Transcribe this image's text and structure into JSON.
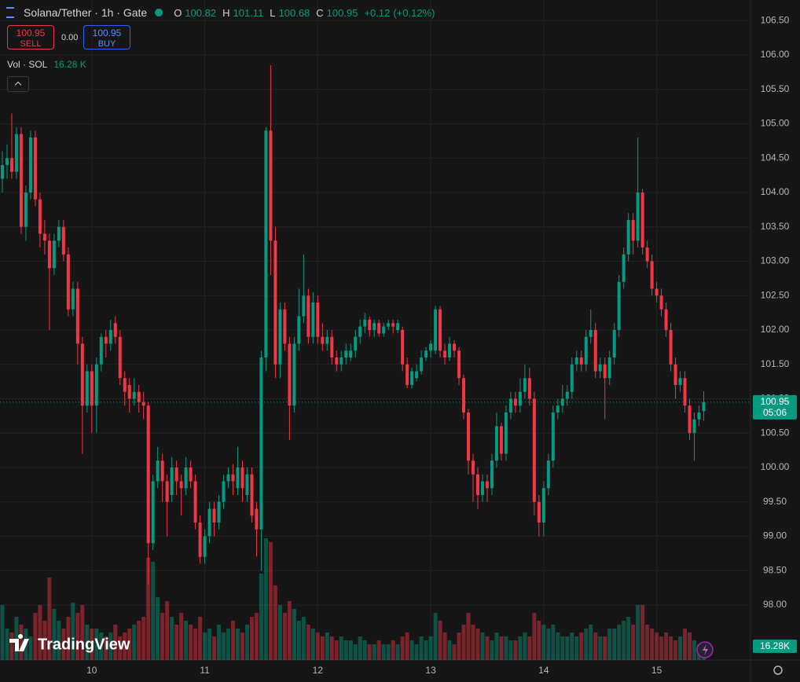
{
  "chart_data": {
    "type": "candlestick",
    "symbol": "Solana/Tether · 1h · Gate",
    "quote_labels": [
      "O",
      "H",
      "L",
      "C"
    ],
    "change": "+0.12",
    "change_pct": "(+0.12%)",
    "trade": {
      "sell": "SELL",
      "spread": "0.00",
      "buy": "BUY"
    },
    "volume_legend": {
      "label": "Vol · SOL",
      "value": "16.28 K"
    },
    "volume_axis_label": "16.28K",
    "countdown": "05:06",
    "logo": "TradingView",
    "up_color": "#089981",
    "down_color": "#f23645",
    "grid": true,
    "categories": [
      null,
      null,
      null,
      null,
      null,
      null,
      null,
      null,
      null,
      null,
      null,
      null,
      null,
      null,
      null,
      null,
      null,
      null,
      null,
      "10",
      null,
      null,
      null,
      null,
      null,
      null,
      null,
      null,
      null,
      null,
      null,
      null,
      null,
      null,
      null,
      null,
      null,
      null,
      null,
      null,
      null,
      null,
      null,
      "11",
      null,
      null,
      null,
      null,
      null,
      null,
      null,
      null,
      null,
      null,
      null,
      null,
      null,
      null,
      null,
      null,
      null,
      null,
      null,
      null,
      null,
      null,
      null,
      "12",
      null,
      null,
      null,
      null,
      null,
      null,
      null,
      null,
      null,
      null,
      null,
      null,
      null,
      null,
      null,
      null,
      null,
      null,
      null,
      null,
      null,
      null,
      null,
      "13",
      null,
      null,
      null,
      null,
      null,
      null,
      null,
      null,
      null,
      null,
      null,
      null,
      null,
      null,
      null,
      null,
      null,
      null,
      null,
      null,
      null,
      null,
      null,
      "14",
      null,
      null,
      null,
      null,
      null,
      null,
      null,
      null,
      null,
      null,
      null,
      null,
      null,
      null,
      null,
      null,
      null,
      null,
      null,
      null,
      null,
      null,
      null,
      "15",
      null,
      null,
      null,
      null,
      null,
      null,
      null,
      null,
      null,
      null
    ],
    "open": [
      104.2,
      104.4,
      104.5,
      104.3,
      104.85,
      103.5,
      104.0,
      104.8,
      103.9,
      103.4,
      103.3,
      102.9,
      103.3,
      103.5,
      103.1,
      102.3,
      102.6,
      101.8,
      100.9,
      101.4,
      100.9,
      101.5,
      101.9,
      101.8,
      102.1,
      101.9,
      101.3,
      101.2,
      101.0,
      101.1,
      100.95,
      100.9,
      98.9,
      99.8,
      100.1,
      99.8,
      99.6,
      100.0,
      99.8,
      99.7,
      100.0,
      99.8,
      99.2,
      98.7,
      99.0,
      99.4,
      99.2,
      99.5,
      99.8,
      99.9,
      99.7,
      100.0,
      99.6,
      99.9,
      99.4,
      99.1,
      101.6,
      104.9,
      103.3,
      101.5,
      102.3,
      101.8,
      100.9,
      101.8,
      102.2,
      102.5,
      101.9,
      102.4,
      101.9,
      101.8,
      101.9,
      101.6,
      101.5,
      101.6,
      101.6,
      101.7,
      101.9,
      102.05,
      102.15,
      102.0,
      102.1,
      101.95,
      102.05,
      102.1,
      102.0,
      102.0,
      101.5,
      101.2,
      101.3,
      101.4,
      101.6,
      101.7,
      101.7,
      102.3,
      101.7,
      101.6,
      101.8,
      101.7,
      101.3,
      100.8,
      100.1,
      99.9,
      99.6,
      99.8,
      99.7,
      100.1,
      100.6,
      100.2,
      100.8,
      101.0,
      100.9,
      101.1,
      101.3,
      101.0,
      99.5,
      99.2,
      99.7,
      100.1,
      100.8,
      100.9,
      101.0,
      101.1,
      101.5,
      101.6,
      101.5,
      101.9,
      102.0,
      101.4,
      101.5,
      101.3,
      101.6,
      102.0,
      102.7,
      103.1,
      103.6,
      103.3,
      104.0,
      103.2,
      103.0,
      102.6,
      102.5,
      102.3,
      102.0,
      101.5,
      101.2,
      101.3,
      100.9,
      100.5,
      100.7,
      100.82
    ],
    "high": [
      104.6,
      104.7,
      105.15,
      104.95,
      104.95,
      104.1,
      104.9,
      104.9,
      104.0,
      103.6,
      103.4,
      103.4,
      103.6,
      103.6,
      103.2,
      102.7,
      102.7,
      101.9,
      101.5,
      101.5,
      101.6,
      101.95,
      102.0,
      102.15,
      102.2,
      102.0,
      101.4,
      101.3,
      101.3,
      101.2,
      101.1,
      100.95,
      99.9,
      100.3,
      100.2,
      99.9,
      100.15,
      100.1,
      99.9,
      100.15,
      100.1,
      99.9,
      99.3,
      99.1,
      99.5,
      99.5,
      99.6,
      99.9,
      100.0,
      100.05,
      100.3,
      100.1,
      100.0,
      100.0,
      99.5,
      101.7,
      104.95,
      105.85,
      103.5,
      102.4,
      102.4,
      101.9,
      101.9,
      102.6,
      103.1,
      102.6,
      102.55,
      102.5,
      102.1,
      102.0,
      102.0,
      101.7,
      101.7,
      101.8,
      101.8,
      102.0,
      102.15,
      102.25,
      102.2,
      102.15,
      102.15,
      102.1,
      102.15,
      102.15,
      102.15,
      102.05,
      101.6,
      101.45,
      101.5,
      101.7,
      101.75,
      101.85,
      102.35,
      102.35,
      101.8,
      101.9,
      101.85,
      101.75,
      101.35,
      100.85,
      100.2,
      100.0,
      99.9,
      99.9,
      100.2,
      100.8,
      100.65,
      100.9,
      101.1,
      101.1,
      101.3,
      101.5,
      101.45,
      101.1,
      99.6,
      99.8,
      100.2,
      100.9,
      101.0,
      101.2,
      101.2,
      101.6,
      101.7,
      101.7,
      102.0,
      102.3,
      102.1,
      101.6,
      101.6,
      101.7,
      102.1,
      102.8,
      103.2,
      103.7,
      103.7,
      104.8,
      104.05,
      103.3,
      103.1,
      102.7,
      102.6,
      102.4,
      102.1,
      101.6,
      101.4,
      101.4,
      101.0,
      100.8,
      100.9,
      101.11
    ],
    "low": [
      104.0,
      104.2,
      104.2,
      104.2,
      103.4,
      103.3,
      103.9,
      103.8,
      103.2,
      103.1,
      102.0,
      102.8,
      103.2,
      103.0,
      102.2,
      102.2,
      101.5,
      100.2,
      100.8,
      100.5,
      100.5,
      101.4,
      101.6,
      101.7,
      101.8,
      101.2,
      100.9,
      100.8,
      100.9,
      100.8,
      100.7,
      98.3,
      98.8,
      99.7,
      99.5,
      99.0,
      99.5,
      99.6,
      99.3,
      99.6,
      99.7,
      99.1,
      98.6,
      98.6,
      98.9,
      99.0,
      99.1,
      99.4,
      99.7,
      99.6,
      99.6,
      99.5,
      99.5,
      99.2,
      98.7,
      98.5,
      101.4,
      102.8,
      101.3,
      101.3,
      101.7,
      100.4,
      100.8,
      101.7,
      102.1,
      101.8,
      101.8,
      101.8,
      101.7,
      101.7,
      101.5,
      101.4,
      101.4,
      101.5,
      101.55,
      101.6,
      101.8,
      101.95,
      101.9,
      101.9,
      101.9,
      101.9,
      102.0,
      101.95,
      101.95,
      101.4,
      101.15,
      101.15,
      101.25,
      101.35,
      101.55,
      101.6,
      101.65,
      101.6,
      101.5,
      101.55,
      101.6,
      101.2,
      100.7,
      99.9,
      99.5,
      99.4,
      99.5,
      99.5,
      99.6,
      100.0,
      100.1,
      100.1,
      100.7,
      100.8,
      100.8,
      101.0,
      100.9,
      99.3,
      99.0,
      99.0,
      99.6,
      100.0,
      100.7,
      100.8,
      100.9,
      101.0,
      101.4,
      101.4,
      101.4,
      101.8,
      101.3,
      101.3,
      100.7,
      101.2,
      101.5,
      101.9,
      102.6,
      103.0,
      103.1,
      103.2,
      103.1,
      102.9,
      102.5,
      102.4,
      102.2,
      101.9,
      101.4,
      101.0,
      101.1,
      100.8,
      100.4,
      100.1,
      100.6,
      100.68
    ],
    "close": [
      104.4,
      104.5,
      104.3,
      104.85,
      103.5,
      104.0,
      104.8,
      103.9,
      103.4,
      103.3,
      102.9,
      103.3,
      103.5,
      103.1,
      102.3,
      102.6,
      101.8,
      100.9,
      101.4,
      100.9,
      101.5,
      101.9,
      101.8,
      102.0,
      101.9,
      101.3,
      101.1,
      101.0,
      101.1,
      100.95,
      100.9,
      98.9,
      99.8,
      100.1,
      99.8,
      99.5,
      100.0,
      99.8,
      99.7,
      100.0,
      99.8,
      99.2,
      98.7,
      99.0,
      99.4,
      99.2,
      99.5,
      99.8,
      99.9,
      99.8,
      100.0,
      99.7,
      99.9,
      99.3,
      99.1,
      101.6,
      104.9,
      103.3,
      101.5,
      102.3,
      101.8,
      100.9,
      101.8,
      102.2,
      102.5,
      101.9,
      102.4,
      101.9,
      101.8,
      101.9,
      101.6,
      101.5,
      101.6,
      101.7,
      101.7,
      101.9,
      102.05,
      102.15,
      102.0,
      102.1,
      101.95,
      102.05,
      102.1,
      102.05,
      102.1,
      101.5,
      101.2,
      101.4,
      101.4,
      101.6,
      101.7,
      101.8,
      102.3,
      101.7,
      101.6,
      101.8,
      101.7,
      101.3,
      100.8,
      100.1,
      99.9,
      99.6,
      99.8,
      99.7,
      100.1,
      100.6,
      100.2,
      100.8,
      101.0,
      100.9,
      101.1,
      101.3,
      101.0,
      99.5,
      99.2,
      99.7,
      100.1,
      100.8,
      100.9,
      101.0,
      101.1,
      101.5,
      101.6,
      101.5,
      101.9,
      102.0,
      101.4,
      101.5,
      101.3,
      101.6,
      102.0,
      102.7,
      103.1,
      103.6,
      103.3,
      104.0,
      103.2,
      103.0,
      102.6,
      102.5,
      102.3,
      102.0,
      101.5,
      101.2,
      101.3,
      100.9,
      100.5,
      100.7,
      100.8,
      100.95
    ],
    "volume": [
      70,
      40,
      35,
      55,
      45,
      40,
      30,
      60,
      70,
      50,
      105,
      65,
      50,
      40,
      55,
      73,
      60,
      70,
      45,
      40,
      40,
      35,
      30,
      35,
      45,
      30,
      35,
      40,
      45,
      50,
      55,
      130,
      125,
      80,
      60,
      75,
      55,
      45,
      60,
      50,
      45,
      40,
      55,
      35,
      40,
      30,
      45,
      35,
      40,
      50,
      40,
      35,
      45,
      55,
      60,
      110,
      155,
      150,
      95,
      70,
      60,
      75,
      65,
      50,
      55,
      45,
      40,
      35,
      30,
      35,
      30,
      25,
      30,
      25,
      25,
      20,
      30,
      25,
      20,
      20,
      25,
      20,
      20,
      25,
      20,
      30,
      35,
      25,
      20,
      30,
      25,
      30,
      60,
      50,
      35,
      25,
      20,
      35,
      45,
      60,
      45,
      40,
      35,
      30,
      25,
      35,
      30,
      30,
      25,
      25,
      30,
      35,
      30,
      60,
      50,
      45,
      40,
      45,
      35,
      30,
      30,
      35,
      30,
      35,
      40,
      45,
      35,
      30,
      30,
      40,
      40,
      45,
      50,
      55,
      45,
      70,
      70,
      45,
      40,
      35,
      30,
      35,
      30,
      25,
      30,
      40,
      35,
      25,
      20,
      16.28
    ],
    "ylim": [
      97.2,
      106.8
    ],
    "yticks": [
      {
        "value": 98,
        "label": "98.00"
      },
      {
        "value": 98.5,
        "label": "98.50"
      },
      {
        "value": 99,
        "label": "99.00"
      },
      {
        "value": 99.5,
        "label": "99.50"
      },
      {
        "value": 100,
        "label": "100.00"
      },
      {
        "value": 100.5,
        "label": "100.50"
      },
      {
        "value": 101,
        "label": "101.00"
      },
      {
        "value": 101.5,
        "label": "101.50"
      },
      {
        "value": 102,
        "label": "102.00"
      },
      {
        "value": 102.5,
        "label": "102.50"
      },
      {
        "value": 103,
        "label": "103.00"
      },
      {
        "value": 103.5,
        "label": "103.50"
      },
      {
        "value": 104,
        "label": "104.00"
      },
      {
        "value": 104.5,
        "label": "104.50"
      },
      {
        "value": 105,
        "label": "105.00"
      },
      {
        "value": 105.5,
        "label": "105.50"
      },
      {
        "value": 106,
        "label": "106.00"
      },
      {
        "value": 106.5,
        "label": "106.50"
      }
    ],
    "y2lim": [
      0,
      170
    ]
  }
}
